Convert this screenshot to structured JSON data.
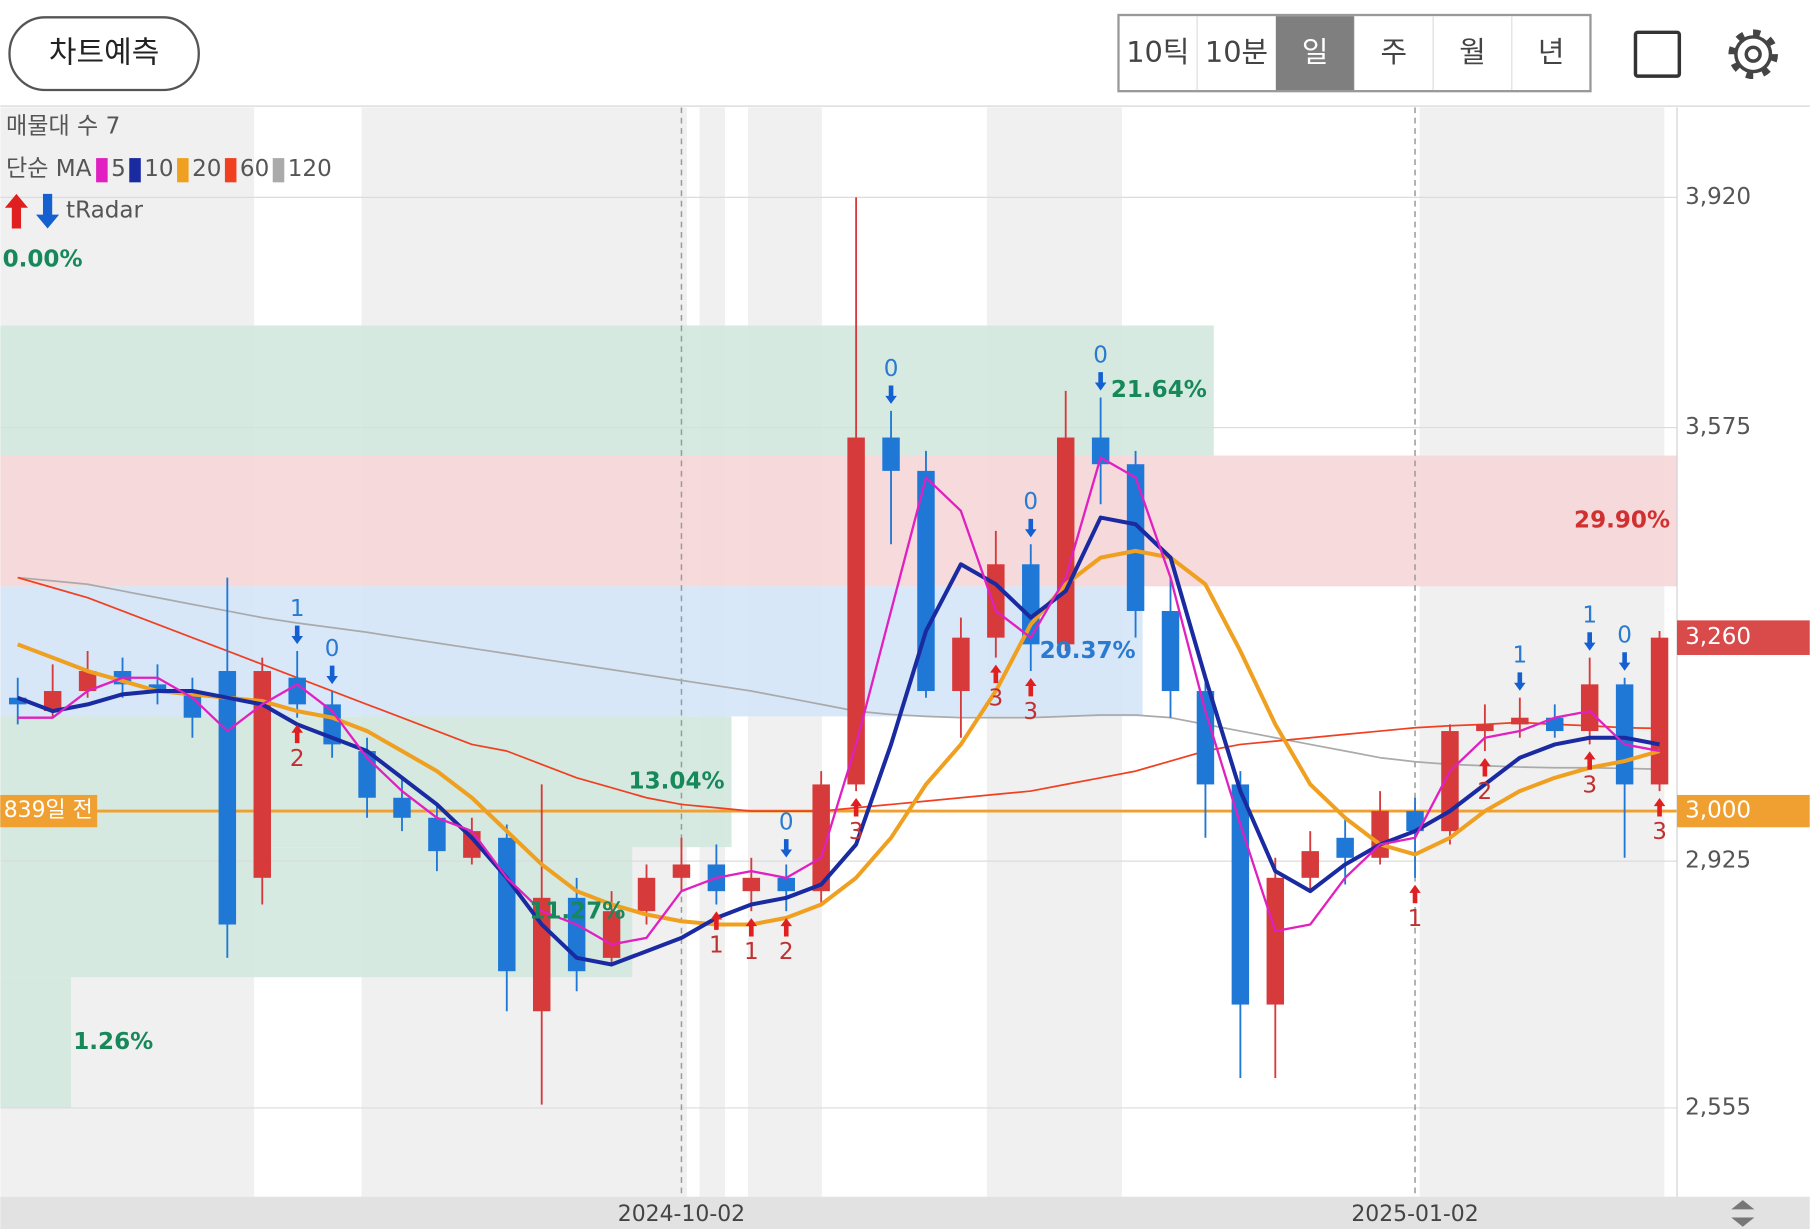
{
  "ui": {
    "predict_button": "차트예측",
    "periods": [
      "10틱",
      "10분",
      "일",
      "주",
      "월",
      "년"
    ],
    "selected_period": 2
  },
  "chart_data": {
    "type": "candlestick",
    "categories": [
      null,
      null,
      null,
      null,
      null,
      null,
      null,
      null,
      null,
      null,
      null,
      null,
      null,
      null,
      null,
      null,
      null,
      null,
      null,
      "2024-10-02",
      null,
      null,
      null,
      null,
      null,
      null,
      null,
      null,
      null,
      null,
      null,
      null,
      null,
      null,
      null,
      null,
      null,
      null,
      null,
      null,
      "2025-01-02",
      null,
      null,
      null,
      null,
      null,
      null,
      null
    ],
    "open": [
      3170,
      3150,
      3180,
      3210,
      3190,
      3180,
      3210,
      2900,
      3200,
      3160,
      3090,
      3020,
      2990,
      2930,
      2960,
      2700,
      2870,
      2780,
      2850,
      2900,
      2920,
      2880,
      2900,
      2880,
      3040,
      3560,
      3510,
      3180,
      3260,
      3370,
      3250,
      3560,
      3520,
      3300,
      3180,
      3040,
      2710,
      2900,
      2960,
      2930,
      3000,
      2970,
      3120,
      3130,
      3140,
      3120,
      3190,
      3040
    ],
    "high": [
      3200,
      3220,
      3240,
      3230,
      3220,
      3200,
      3350,
      3230,
      3240,
      3180,
      3110,
      3050,
      3010,
      2990,
      2980,
      3040,
      2900,
      2880,
      2920,
      2960,
      2950,
      2930,
      2920,
      3060,
      3920,
      3600,
      3540,
      3290,
      3420,
      3400,
      3630,
      3620,
      3540,
      3350,
      3200,
      3060,
      2930,
      2970,
      2990,
      3030,
      3020,
      3130,
      3160,
      3170,
      3160,
      3230,
      3200,
      3270
    ],
    "low": [
      3130,
      3140,
      3170,
      3170,
      3160,
      3110,
      2780,
      2860,
      3140,
      3080,
      2990,
      2970,
      2910,
      2920,
      2700,
      2560,
      2730,
      2770,
      2830,
      2880,
      2860,
      2850,
      2850,
      2860,
      3030,
      3400,
      3170,
      3110,
      3230,
      3210,
      3240,
      3460,
      3260,
      3140,
      2960,
      2600,
      2600,
      2880,
      2890,
      2920,
      2900,
      2950,
      3090,
      3110,
      3110,
      3100,
      2930,
      3030
    ],
    "close": [
      3160,
      3180,
      3210,
      3190,
      3180,
      3140,
      2830,
      3210,
      3160,
      3100,
      3020,
      2990,
      2940,
      2970,
      2760,
      2870,
      2760,
      2850,
      2900,
      2920,
      2880,
      2900,
      2880,
      3040,
      3560,
      3510,
      3180,
      3260,
      3370,
      3250,
      3560,
      3520,
      3300,
      3180,
      3040,
      2710,
      2900,
      2940,
      2930,
      3000,
      2970,
      3120,
      3130,
      3140,
      3120,
      3190,
      3040,
      3260
    ],
    "up_color": "#d63a3a",
    "down_color": "#1f78d6",
    "ylim": [
      2422,
      4055
    ],
    "yticks": [
      {
        "value": 2555,
        "label": "2,555"
      },
      {
        "value": 2925,
        "label": "2,925"
      },
      {
        "value": 3575,
        "label": "3,575"
      },
      {
        "value": 3920,
        "label": "3,920"
      }
    ],
    "grid": true,
    "moving_averages": {
      "label": "단순 MA",
      "series": [
        {
          "name": "120",
          "color": "#aaaaaa",
          "line_width": 1.5,
          "values": [
            3350,
            3345,
            3340,
            3330,
            3320,
            3310,
            3300,
            3290,
            3282,
            3275,
            3268,
            3260,
            3252,
            3244,
            3236,
            3228,
            3220,
            3212,
            3204,
            3196,
            3188,
            3180,
            3170,
            3160,
            3150,
            3145,
            3142,
            3140,
            3140,
            3140,
            3142,
            3144,
            3144,
            3140,
            3130,
            3120,
            3110,
            3100,
            3090,
            3080,
            3074,
            3070,
            3068,
            3066,
            3065,
            3065,
            3064,
            3063
          ]
        },
        {
          "name": "60",
          "color": "#f04020",
          "line_width": 1.5,
          "values": [
            3350,
            3335,
            3320,
            3300,
            3280,
            3260,
            3240,
            3220,
            3200,
            3180,
            3160,
            3140,
            3120,
            3100,
            3090,
            3070,
            3050,
            3035,
            3020,
            3010,
            3005,
            3000,
            3000,
            3000,
            3005,
            3010,
            3015,
            3020,
            3025,
            3030,
            3040,
            3050,
            3060,
            3075,
            3090,
            3100,
            3105,
            3110,
            3115,
            3120,
            3125,
            3128,
            3130,
            3133,
            3130,
            3128,
            3125,
            3124
          ]
        },
        {
          "name": "20",
          "color": "#f0a020",
          "line_width": 3.5,
          "values": [
            3250,
            3230,
            3210,
            3195,
            3180,
            3175,
            3170,
            3165,
            3150,
            3140,
            3120,
            3090,
            3060,
            3020,
            2970,
            2920,
            2880,
            2860,
            2845,
            2835,
            2830,
            2830,
            2840,
            2860,
            2900,
            2960,
            3040,
            3100,
            3180,
            3280,
            3340,
            3380,
            3390,
            3380,
            3340,
            3240,
            3130,
            3040,
            2990,
            2950,
            2935,
            2960,
            3000,
            3030,
            3050,
            3065,
            3075,
            3090
          ]
        },
        {
          "name": "10",
          "color": "#1a2aa0",
          "line_width": 3.5,
          "values": [
            3170,
            3150,
            3160,
            3175,
            3180,
            3180,
            3170,
            3160,
            3130,
            3110,
            3090,
            3050,
            3010,
            2960,
            2900,
            2830,
            2780,
            2770,
            2790,
            2810,
            2840,
            2860,
            2870,
            2890,
            2950,
            3100,
            3270,
            3370,
            3340,
            3290,
            3330,
            3440,
            3430,
            3380,
            3200,
            3030,
            2910,
            2880,
            2920,
            2950,
            2970,
            3000,
            3040,
            3080,
            3100,
            3110,
            3110,
            3100
          ]
        },
        {
          "name": "5",
          "color": "#e020c0",
          "line_width": 2,
          "values": [
            3140,
            3140,
            3180,
            3200,
            3200,
            3170,
            3120,
            3160,
            3190,
            3150,
            3080,
            3030,
            2990,
            2970,
            2900,
            2850,
            2830,
            2800,
            2810,
            2880,
            2900,
            2910,
            2900,
            2930,
            3100,
            3300,
            3500,
            3450,
            3300,
            3260,
            3350,
            3530,
            3500,
            3350,
            3150,
            2980,
            2820,
            2830,
            2900,
            2950,
            2960,
            3060,
            3110,
            3120,
            3140,
            3150,
            3100,
            3090
          ]
        }
      ]
    },
    "volume_profile": {
      "title": "매물대 수 7",
      "xlim": [
        0,
        29.9
      ],
      "bands": [
        {
          "low": 2555,
          "high": 2751,
          "value": 1.26,
          "label": "1.26%",
          "color": "#d2e8de",
          "label_color": "#17885a"
        },
        {
          "low": 2751,
          "high": 2946,
          "value": 11.27,
          "label": "11.27%",
          "color": "#d2e8de",
          "label_color": "#17885a"
        },
        {
          "low": 2946,
          "high": 3142,
          "value": 13.04,
          "label": "13.04%",
          "color": "#d2e8de",
          "label_color": "#17885a"
        },
        {
          "low": 3142,
          "high": 3337,
          "value": 20.37,
          "label": "20.37%",
          "color": "#d4e6f8",
          "label_color": "#2a7ad0"
        },
        {
          "low": 3337,
          "high": 3533,
          "value": 29.9,
          "label": "29.90%",
          "color": "#f6d6d8",
          "label_color": "#d03030"
        },
        {
          "low": 3533,
          "high": 3728,
          "value": 21.64,
          "label": "21.64%",
          "color": "#d2e8de",
          "label_color": "#17885a"
        },
        {
          "low": 3728,
          "high": 3924,
          "value": 0,
          "label": "0.00%",
          "color": "#d2e8de",
          "label_color": "#17885a"
        }
      ]
    },
    "price_lines": [
      {
        "value": 3000,
        "label": "3,000",
        "tag": "839일 전",
        "color": "#f0a030"
      }
    ],
    "last_price": {
      "value": 3260,
      "label": "3,260",
      "color": "#d94a4a"
    },
    "signal_legend": "tRadar",
    "signals": [
      {
        "candle": 8,
        "label": "1",
        "dir": "down"
      },
      {
        "candle": 9,
        "label": "0",
        "dir": "down"
      },
      {
        "candle": 8,
        "label": "2",
        "dir": "up"
      },
      {
        "candle": 20,
        "label": "1",
        "dir": "up"
      },
      {
        "candle": 21,
        "label": "1",
        "dir": "up"
      },
      {
        "candle": 22,
        "label": "0",
        "dir": "down"
      },
      {
        "candle": 22,
        "label": "2",
        "dir": "up"
      },
      {
        "candle": 24,
        "label": "3",
        "dir": "up"
      },
      {
        "candle": 25,
        "label": "0",
        "dir": "down"
      },
      {
        "candle": 28,
        "label": "3",
        "dir": "up"
      },
      {
        "candle": 29,
        "label": "0",
        "dir": "down"
      },
      {
        "candle": 29,
        "label": "3",
        "dir": "up"
      },
      {
        "candle": 31,
        "label": "0",
        "dir": "down"
      },
      {
        "candle": 40,
        "label": "1",
        "dir": "up"
      },
      {
        "candle": 42,
        "label": "2",
        "dir": "up"
      },
      {
        "candle": 43,
        "label": "1",
        "dir": "down"
      },
      {
        "candle": 45,
        "label": "1",
        "dir": "down"
      },
      {
        "candle": 45,
        "label": "3",
        "dir": "up"
      },
      {
        "candle": 46,
        "label": "0",
        "dir": "down"
      },
      {
        "candle": 47,
        "label": "3",
        "dir": "up"
      }
    ]
  }
}
